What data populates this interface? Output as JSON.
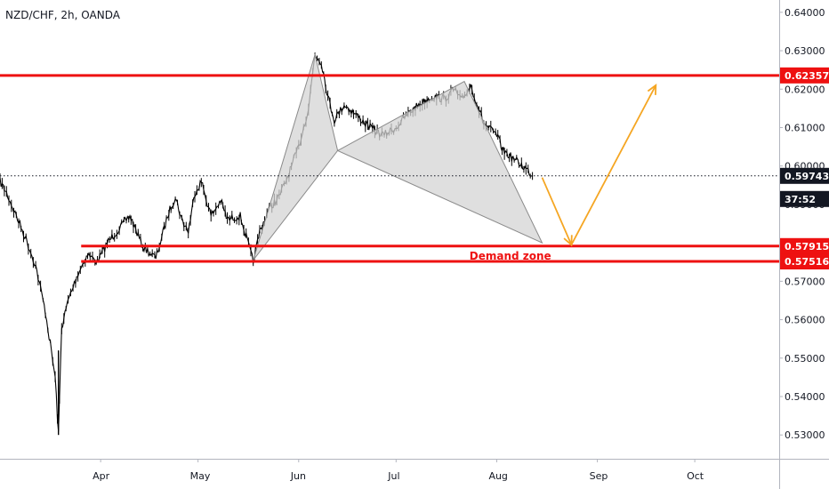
{
  "header": {
    "symbol_title": "NZD/CHF, 2h, OANDA"
  },
  "colors": {
    "resistance": "#ee1111",
    "support": "#ee1111",
    "pattern_fill": "#d4d4d4",
    "pattern_stroke": "#8a8a8a",
    "projection": "#f5a623",
    "price_tag": "#131722",
    "candles": "#000000"
  },
  "chart_data": {
    "type": "line",
    "symbol": "NZD/CHF",
    "timeframe": "2h",
    "broker": "OANDA",
    "x_ticks": [
      "Apr",
      "May",
      "Jun",
      "Jul",
      "Aug",
      "Sep",
      "Oct"
    ],
    "y_ticks": [
      "0.53000",
      "0.54000",
      "0.55000",
      "0.56000",
      "0.57000",
      "0.58000",
      "0.59000",
      "0.60000",
      "0.61000",
      "0.62000",
      "0.63000",
      "0.64000"
    ],
    "ylim": [
      0.5238,
      0.6432
    ],
    "xlim": [
      "2020-03-01",
      "2020-10-27"
    ],
    "price_series": {
      "x": [
        "2020-03-01",
        "2020-03-03",
        "2020-03-06",
        "2020-03-09",
        "2020-03-12",
        "2020-03-15",
        "2020-03-18",
        "2020-03-19",
        "2020-03-20",
        "2020-03-22",
        "2020-03-25",
        "2020-03-28",
        "2020-03-31",
        "2020-04-03",
        "2020-04-06",
        "2020-04-10",
        "2020-04-14",
        "2020-04-18",
        "2020-04-22",
        "2020-04-24",
        "2020-04-26",
        "2020-04-28",
        "2020-04-30",
        "2020-05-02",
        "2020-05-05",
        "2020-05-08",
        "2020-05-10",
        "2020-05-14",
        "2020-05-18",
        "2020-05-20",
        "2020-05-23",
        "2020-05-26",
        "2020-05-29",
        "2020-06-01",
        "2020-06-04",
        "2020-06-06",
        "2020-06-08",
        "2020-06-10",
        "2020-06-12",
        "2020-06-15",
        "2020-06-19",
        "2020-06-23",
        "2020-06-27",
        "2020-07-01",
        "2020-07-04",
        "2020-07-08",
        "2020-07-12",
        "2020-07-16",
        "2020-07-19",
        "2020-07-21",
        "2020-07-24",
        "2020-07-28",
        "2020-08-01",
        "2020-08-03",
        "2020-08-06",
        "2020-08-09",
        "2020-08-11",
        "2020-08-12"
      ],
      "y": [
        0.596,
        0.593,
        0.587,
        0.581,
        0.574,
        0.562,
        0.545,
        0.53,
        0.558,
        0.565,
        0.572,
        0.577,
        0.575,
        0.58,
        0.583,
        0.587,
        0.579,
        0.576,
        0.588,
        0.592,
        0.586,
        0.583,
        0.593,
        0.596,
        0.587,
        0.591,
        0.586,
        0.587,
        0.575,
        0.583,
        0.589,
        0.592,
        0.598,
        0.605,
        0.615,
        0.629,
        0.627,
        0.618,
        0.612,
        0.616,
        0.613,
        0.61,
        0.608,
        0.61,
        0.613,
        0.616,
        0.618,
        0.6175,
        0.62,
        0.617,
        0.621,
        0.611,
        0.608,
        0.604,
        0.602,
        0.6,
        0.5985,
        0.5974
      ]
    },
    "horizontal_levels": [
      {
        "price": 0.62357,
        "label": "0.62357",
        "role": "resistance"
      },
      {
        "price": 0.57915,
        "label": "0.57915",
        "role": "support"
      },
      {
        "price": 0.57516,
        "label": "0.57516",
        "role": "support"
      }
    ],
    "current_price": {
      "price": 0.59743,
      "label": "0.59743",
      "countdown": "37:52"
    },
    "zone_label": {
      "text": "Demand zone",
      "x": "2020-08-03",
      "price": 0.5768
    },
    "harmonic_pattern": {
      "points": [
        {
          "x": "2020-05-18",
          "price": 0.5755
        },
        {
          "x": "2020-06-06",
          "price": 0.629
        },
        {
          "x": "2020-06-13",
          "price": 0.604
        },
        {
          "x": "2020-07-22",
          "price": 0.622
        },
        {
          "x": "2020-08-15",
          "price": 0.58
        }
      ]
    },
    "projection_path": [
      {
        "x": "2020-08-15",
        "price": 0.597
      },
      {
        "x": "2020-08-24",
        "price": 0.5795
      },
      {
        "x": "2020-09-19",
        "price": 0.621
      }
    ],
    "grid": false,
    "legend": "none"
  }
}
